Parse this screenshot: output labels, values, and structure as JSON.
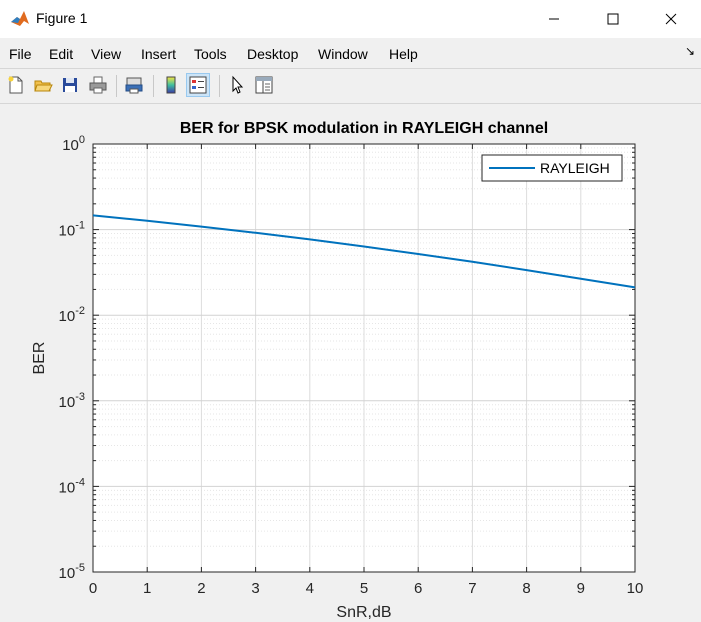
{
  "window": {
    "title": "Figure 1",
    "controls": [
      "minimize-icon",
      "maximize-icon",
      "close-icon"
    ]
  },
  "menu": {
    "items": [
      "File",
      "Edit",
      "View",
      "Insert",
      "Tools",
      "Desktop",
      "Window",
      "Help"
    ]
  },
  "toolbar": {
    "buttons": [
      "new-figure-icon",
      "open-file-icon",
      "save-icon",
      "print-icon",
      "print-preview-icon",
      "colorbar-icon",
      "legend-icon",
      "pointer-icon",
      "property-inspector-icon"
    ]
  },
  "chart_data": {
    "type": "line",
    "title": "BER for BPSK modulation in RAYLEIGH channel",
    "xlabel": "SnR,dB",
    "ylabel": "BER",
    "xlim": [
      0,
      10
    ],
    "ylim": [
      1e-05,
      1
    ],
    "yscale": "log",
    "grid": true,
    "minor_grid": true,
    "legend_location": "top-right",
    "x_ticks": [
      "0",
      "1",
      "2",
      "3",
      "4",
      "5",
      "6",
      "7",
      "8",
      "9",
      "10"
    ],
    "y_ticks": [
      {
        "base": "10",
        "exp": "0",
        "value": 1
      },
      {
        "base": "10",
        "exp": "-1",
        "value": 0.1
      },
      {
        "base": "10",
        "exp": "-2",
        "value": 0.01
      },
      {
        "base": "10",
        "exp": "-3",
        "value": 0.001
      },
      {
        "base": "10",
        "exp": "-4",
        "value": 0.0001
      },
      {
        "base": "10",
        "exp": "-5",
        "value": 1e-05
      }
    ],
    "series": [
      {
        "name": "RAYLEIGH",
        "color": "#0072bd",
        "x": [
          0,
          1,
          2,
          3,
          4,
          5,
          6,
          7,
          8,
          9,
          10
        ],
        "y": [
          0.1464,
          0.1267,
          0.1085,
          0.0918,
          0.0768,
          0.0635,
          0.0519,
          0.042,
          0.0336,
          0.0267,
          0.0211
        ]
      }
    ]
  }
}
